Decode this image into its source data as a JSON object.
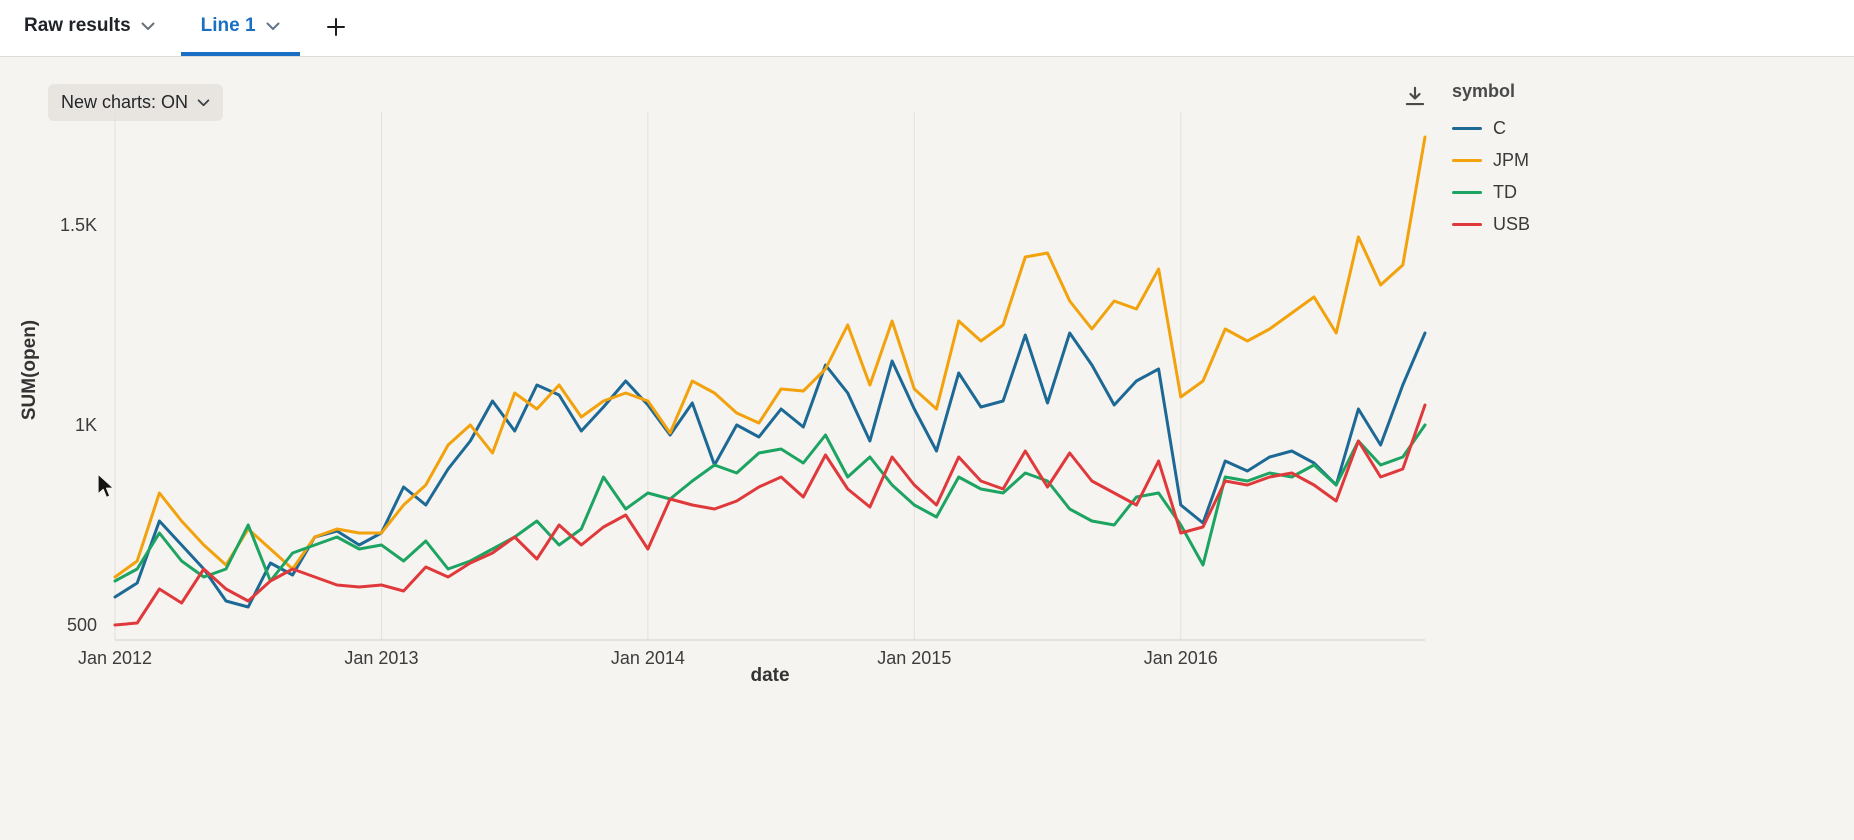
{
  "colors": {
    "accent": "#1a6fc4",
    "canvas_background": "#f6f4f0",
    "gridline": "#e4e1db",
    "axis_line": "#d2cfc8"
  },
  "icons": {
    "tab_dropdown": "chevron-down",
    "add_tab": "plus",
    "new_charts_dropdown": "chevron-down",
    "download": "download",
    "cursor": "mouse-pointer"
  },
  "tabs": {
    "raw_results_label": "Raw results",
    "line1_label": "Line 1"
  },
  "toolbar": {
    "new_charts_label": "New charts: ON"
  },
  "legend": {
    "title": "symbol"
  },
  "chart_data": {
    "type": "line",
    "title": "",
    "xlabel": "date",
    "ylabel": "SUM(open)",
    "x_unit": "month",
    "ylim": [
      462.5,
      1782.5
    ],
    "grid": "vertical",
    "legend_position": "right",
    "yticks": [
      {
        "value": 500,
        "label": "500"
      },
      {
        "value": 1000,
        "label": "1K"
      },
      {
        "value": 1500,
        "label": "1.5K"
      }
    ],
    "xticks": [
      {
        "i": 0,
        "label": "Jan 2012"
      },
      {
        "i": 12,
        "label": "Jan 2013"
      },
      {
        "i": 24,
        "label": "Jan 2014"
      },
      {
        "i": 36,
        "label": "Jan 2015"
      },
      {
        "i": 48,
        "label": "Jan 2016"
      }
    ],
    "series": [
      {
        "name": "C",
        "color": "#1d6996",
        "values": [
          570,
          605,
          760,
          700,
          640,
          560,
          545,
          655,
          625,
          720,
          735,
          700,
          730,
          845,
          800,
          890,
          960,
          1060,
          985,
          1100,
          1075,
          985,
          1045,
          1110,
          1050,
          975,
          1055,
          900,
          1000,
          970,
          1040,
          995,
          1150,
          1080,
          960,
          1160,
          1040,
          935,
          1130,
          1045,
          1060,
          1225,
          1055,
          1230,
          1150,
          1050,
          1110,
          1140,
          800,
          755,
          910,
          885,
          920,
          935,
          905,
          850,
          1040,
          950,
          1100,
          1230
        ]
      },
      {
        "name": "JPM",
        "color": "#f2a20d",
        "values": [
          620,
          660,
          830,
          760,
          700,
          650,
          740,
          690,
          640,
          720,
          740,
          730,
          730,
          800,
          850,
          950,
          1000,
          930,
          1080,
          1040,
          1100,
          1020,
          1060,
          1080,
          1060,
          980,
          1110,
          1080,
          1030,
          1005,
          1090,
          1085,
          1140,
          1250,
          1100,
          1260,
          1090,
          1040,
          1260,
          1210,
          1250,
          1420,
          1430,
          1310,
          1240,
          1310,
          1290,
          1390,
          1070,
          1110,
          1240,
          1210,
          1240,
          1280,
          1320,
          1230,
          1470,
          1350,
          1400,
          1720
        ]
      },
      {
        "name": "TD",
        "color": "#1da462",
        "values": [
          610,
          640,
          730,
          660,
          620,
          640,
          750,
          610,
          680,
          700,
          720,
          690,
          700,
          660,
          710,
          640,
          660,
          690,
          720,
          760,
          700,
          740,
          870,
          790,
          830,
          815,
          860,
          900,
          880,
          930,
          940,
          905,
          975,
          870,
          920,
          850,
          800,
          770,
          870,
          840,
          830,
          880,
          860,
          790,
          760,
          750,
          820,
          830,
          750,
          650,
          870,
          860,
          880,
          870,
          900,
          850,
          960,
          900,
          920,
          1000
        ]
      },
      {
        "name": "USB",
        "color": "#e0393b",
        "values": [
          500,
          505,
          590,
          555,
          640,
          590,
          560,
          610,
          640,
          620,
          600,
          595,
          600,
          585,
          645,
          620,
          655,
          680,
          720,
          665,
          750,
          700,
          745,
          775,
          690,
          815,
          800,
          790,
          810,
          845,
          870,
          820,
          925,
          840,
          795,
          920,
          850,
          800,
          920,
          860,
          840,
          935,
          845,
          930,
          860,
          830,
          800,
          910,
          730,
          745,
          860,
          850,
          870,
          880,
          850,
          810,
          960,
          870,
          890,
          1050
        ]
      }
    ]
  }
}
